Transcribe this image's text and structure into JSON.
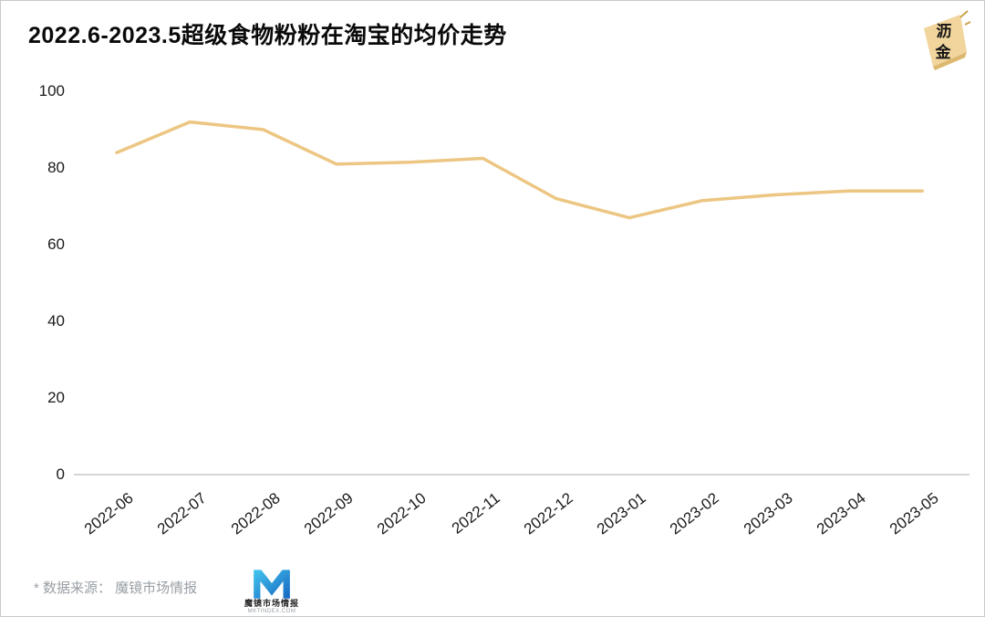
{
  "title": "2022.6-2023.5超级食物粉粉在淘宝的均价走势",
  "badge": {
    "char1": "沥",
    "char2": "金"
  },
  "footer": {
    "source_note": "* 数据来源： 魔镜市场情报",
    "logo_name": "魔镜市场情报",
    "logo_domain": "MKTINDEX.COM"
  },
  "chart_data": {
    "type": "line",
    "title": "2022.6-2023.5超级食物粉粉在淘宝的均价走势",
    "categories": [
      "2022-06",
      "2022-07",
      "2022-08",
      "2022-09",
      "2022-10",
      "2022-11",
      "2022-12",
      "2023-01",
      "2023-02",
      "2023-03",
      "2023-04",
      "2023-05"
    ],
    "values": [
      84,
      92,
      90,
      81,
      81.5,
      82.5,
      72,
      67,
      71.5,
      73,
      74,
      74
    ],
    "xlabel": "",
    "ylabel": "",
    "ylim": [
      0,
      100
    ],
    "yticks": [
      0,
      20,
      40,
      60,
      80,
      100
    ],
    "grid": false,
    "legend": "none",
    "line_color": "#ecc682",
    "axis_color": "#d6d6d6"
  }
}
